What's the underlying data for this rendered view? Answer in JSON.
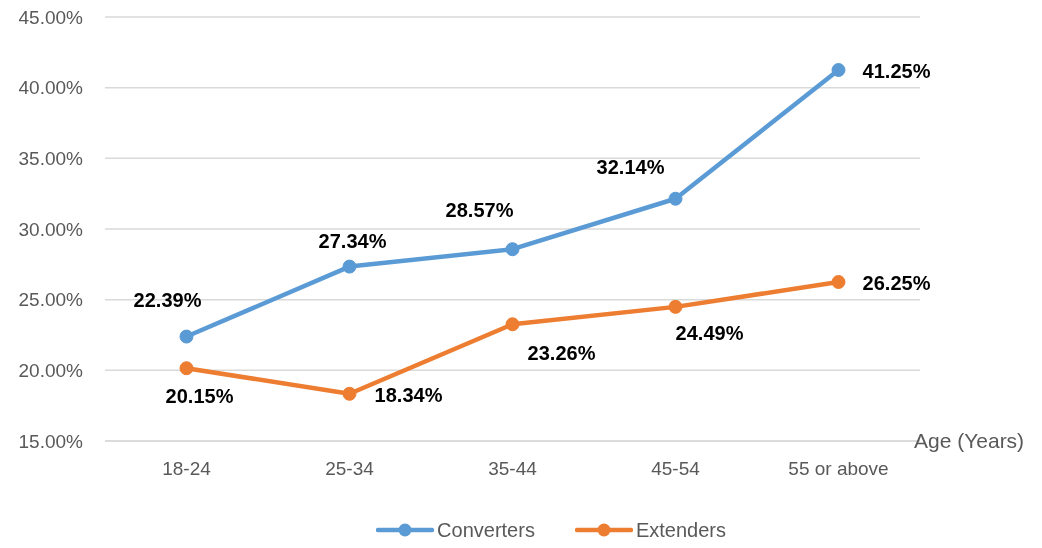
{
  "chart_data": {
    "type": "line",
    "xlabel": "Age (Years)",
    "categories": [
      "18-24",
      "25-34",
      "35-44",
      "45-54",
      "55 or above"
    ],
    "series": [
      {
        "name": "Converters",
        "color": "#5b9bd5",
        "values": [
          22.39,
          27.34,
          28.57,
          32.14,
          41.25
        ],
        "value_labels": [
          "22.39%",
          "27.34%",
          "28.57%",
          "32.14%",
          "41.25%"
        ]
      },
      {
        "name": "Extenders",
        "color": "#ed7d31",
        "values": [
          20.15,
          18.34,
          23.26,
          24.49,
          26.25
        ],
        "value_labels": [
          "20.15%",
          "18.34%",
          "23.26%",
          "24.49%",
          "26.25%"
        ]
      }
    ],
    "ylim": [
      15,
      45
    ],
    "yticks": [
      {
        "value": 15,
        "label": "15.00%"
      },
      {
        "value": 20,
        "label": "20.00%"
      },
      {
        "value": 25,
        "label": "25.00%"
      },
      {
        "value": 30,
        "label": "30.00%"
      },
      {
        "value": 35,
        "label": "35.00%"
      },
      {
        "value": 40,
        "label": "40.00%"
      },
      {
        "value": 45,
        "label": "45.00%"
      }
    ],
    "grid": "y",
    "legend": "bottom",
    "marker": "circle",
    "line_style": "solid"
  }
}
